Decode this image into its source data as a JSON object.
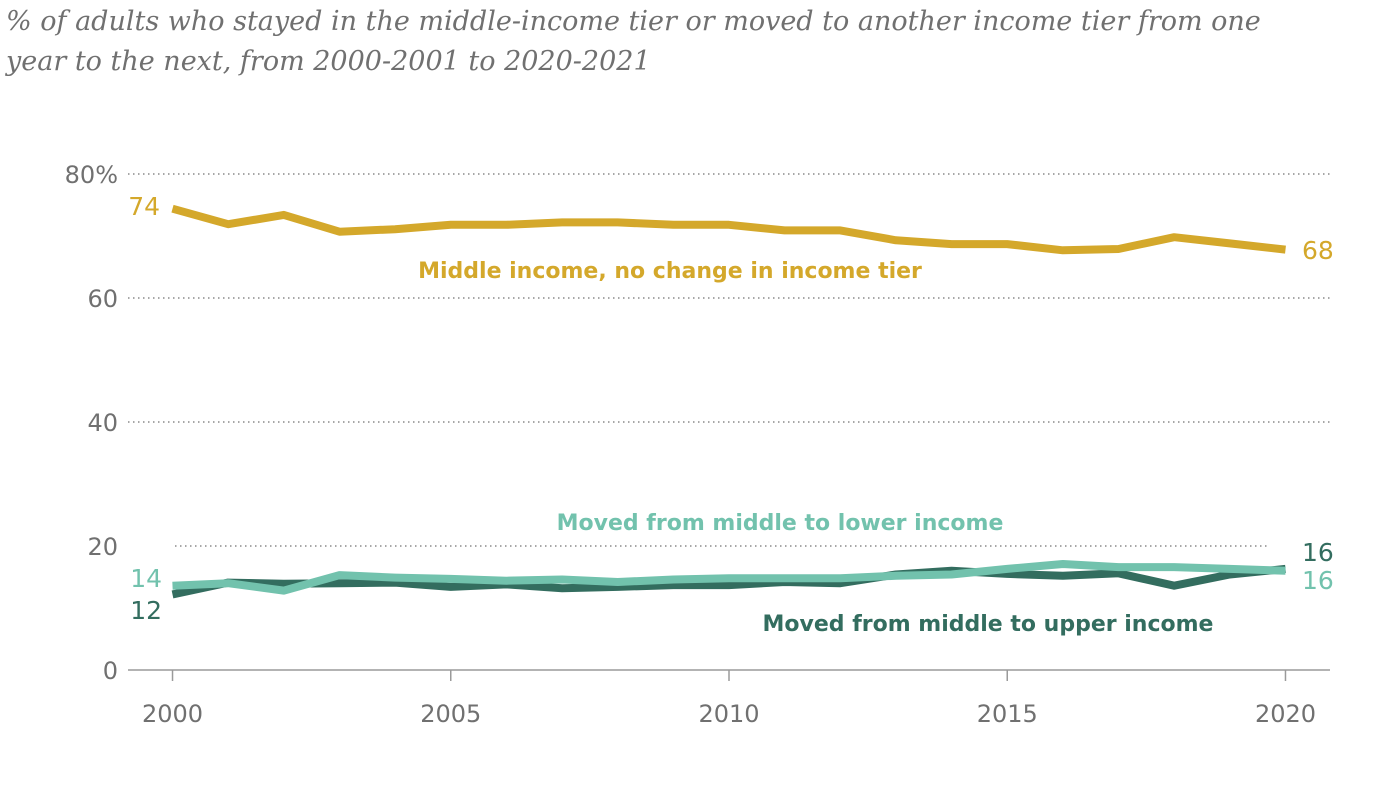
{
  "subtitle": "% of adults who stayed in the middle-income tier or moved to another income tier from one year to the next, from 2000-2001 to 2020-2021",
  "chart_data": {
    "type": "line",
    "title": "",
    "xlabel": "",
    "ylabel": "",
    "x": [
      2000,
      2001,
      2002,
      2003,
      2004,
      2005,
      2006,
      2007,
      2008,
      2009,
      2010,
      2011,
      2012,
      2013,
      2014,
      2015,
      2016,
      2017,
      2018,
      2019,
      2020
    ],
    "xlim": [
      1999.2,
      2020.8
    ],
    "ylim": [
      0,
      80
    ],
    "grid": true,
    "x_ticks": [
      {
        "value": 2000,
        "label": "2000"
      },
      {
        "value": 2005,
        "label": "2005"
      },
      {
        "value": 2010,
        "label": "2010"
      },
      {
        "value": 2015,
        "label": "2015"
      },
      {
        "value": 2020,
        "label": "2020"
      }
    ],
    "y_ticks": [
      {
        "value": 0,
        "label": "0"
      },
      {
        "value": 20,
        "label": "20"
      },
      {
        "value": 40,
        "label": "40"
      },
      {
        "value": 60,
        "label": "60"
      },
      {
        "value": 80,
        "label": "80%"
      }
    ],
    "series": [
      {
        "name": "Middle income, no change in income tier",
        "color": "#d4a82b",
        "values": [
          74.4,
          71.9,
          73.4,
          70.7,
          71.1,
          71.8,
          71.8,
          72.2,
          72.2,
          71.8,
          71.8,
          70.9,
          70.9,
          69.3,
          68.7,
          68.7,
          67.7,
          67.9,
          69.8,
          68.8,
          67.8
        ],
        "start_label": "74",
        "end_label": "68"
      },
      {
        "name": "Moved from middle to lower income",
        "color": "#72c2ad",
        "values": [
          13.6,
          14.0,
          12.8,
          15.3,
          14.9,
          14.7,
          14.4,
          14.6,
          14.2,
          14.6,
          14.8,
          14.8,
          14.8,
          15.2,
          15.4,
          16.3,
          17.1,
          16.6,
          16.6,
          16.3,
          16.0
        ],
        "start_label": "14",
        "end_label": "16"
      },
      {
        "name": "Moved from middle to upper income",
        "color": "#336d5f",
        "values": [
          12.2,
          14.1,
          13.9,
          14.0,
          14.1,
          13.4,
          13.8,
          13.2,
          13.4,
          13.7,
          13.7,
          14.2,
          14.0,
          15.4,
          16.0,
          15.5,
          15.2,
          15.6,
          13.6,
          15.4,
          16.3
        ],
        "start_label": "12",
        "end_label": "16"
      }
    ]
  }
}
